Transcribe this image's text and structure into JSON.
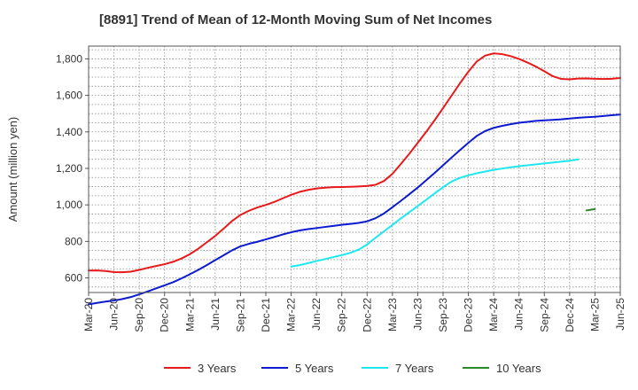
{
  "chart_data": {
    "type": "line",
    "title": "[8891]  Trend of Mean of 12-Month Moving Sum of Net Incomes",
    "xlabel": "",
    "ylabel": "Amount (million yen)",
    "ylim": [
      520,
      1870
    ],
    "yticks": [
      600,
      800,
      1000,
      1200,
      1400,
      1600,
      1800
    ],
    "ytick_labels": [
      "600",
      "800",
      "1,000",
      "1,200",
      "1,400",
      "1,600",
      "1,800"
    ],
    "x_start_month": "2020-03",
    "x_months_total": 63,
    "xtick_labels": [
      "Mar-20",
      "Jun-20",
      "Sep-20",
      "Dec-20",
      "Mar-21",
      "Jun-21",
      "Sep-21",
      "Dec-21",
      "Mar-22",
      "Jun-22",
      "Sep-22",
      "Dec-22",
      "Mar-23",
      "Jun-23",
      "Sep-23",
      "Dec-23",
      "Mar-24",
      "Jun-24",
      "Sep-24",
      "Dec-24",
      "Mar-25",
      "Jun-25"
    ],
    "grid": true,
    "legend_position": "bottom",
    "series": [
      {
        "name": "3 Years",
        "color": "#e8191a",
        "start": "2020-03",
        "values": [
          640,
          641,
          638,
          632,
          631,
          634,
          644,
          655,
          665,
          675,
          688,
          706,
          730,
          760,
          795,
          830,
          870,
          912,
          945,
          968,
          986,
          1000,
          1016,
          1036,
          1055,
          1071,
          1082,
          1090,
          1094,
          1097,
          1098,
          1099,
          1101,
          1104,
          1110,
          1131,
          1170,
          1224,
          1280,
          1340,
          1400,
          1464,
          1530,
          1598,
          1666,
          1730,
          1786,
          1818,
          1830,
          1826,
          1815,
          1800,
          1780,
          1758,
          1732,
          1705,
          1690,
          1688,
          1692,
          1693,
          1691,
          1690,
          1691,
          1695
        ]
      },
      {
        "name": "5 Years",
        "color": "#0c1ad0",
        "start": "2020-03",
        "values": [
          455,
          463,
          470,
          476,
          484,
          495,
          510,
          526,
          543,
          559,
          576,
          597,
          620,
          644,
          670,
          697,
          724,
          751,
          773,
          787,
          798,
          811,
          824,
          838,
          850,
          860,
          867,
          873,
          879,
          885,
          891,
          896,
          901,
          910,
          927,
          953,
          987,
          1022,
          1058,
          1095,
          1135,
          1175,
          1217,
          1259,
          1300,
          1340,
          1378,
          1405,
          1422,
          1433,
          1442,
          1450,
          1455,
          1460,
          1463,
          1466,
          1469,
          1473,
          1477,
          1480,
          1483,
          1487,
          1491,
          1495
        ]
      },
      {
        "name": "7 Years",
        "color": "#1ee8ef",
        "start": "2022-03",
        "values": [
          662,
          670,
          681,
          692,
          703,
          714,
          725,
          737,
          755,
          783,
          820,
          855,
          890,
          926,
          960,
          994,
          1028,
          1063,
          1097,
          1128,
          1148,
          1162,
          1173,
          1183,
          1192,
          1199,
          1206,
          1212,
          1217,
          1222,
          1227,
          1232,
          1237,
          1242,
          1249
        ]
      },
      {
        "name": "10 Years",
        "color": "#2a8a2a",
        "start": "2025-02",
        "values": [
          970,
          977
        ]
      }
    ]
  }
}
